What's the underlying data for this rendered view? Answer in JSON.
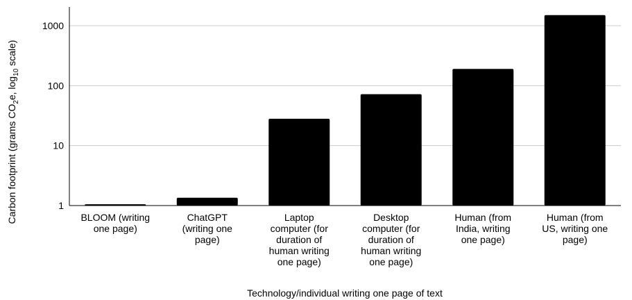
{
  "chart_data": {
    "type": "bar",
    "scale": "log10",
    "categories": [
      [
        "BLOOM (writing",
        "one page)"
      ],
      [
        "ChatGPT",
        "(writing one",
        "page)"
      ],
      [
        "Laptop",
        "computer (for",
        "duration of",
        "human writing",
        "one page)"
      ],
      [
        "Desktop",
        "computer (for",
        "duration of",
        "human writing",
        "one page)"
      ],
      [
        "Human (from",
        "India, writing",
        "one page)"
      ],
      [
        "Human (from",
        "US, writing one",
        "page)"
      ]
    ],
    "values": [
      1.05,
      1.35,
      28,
      72,
      190,
      1500
    ],
    "ylim": [
      1,
      2000
    ],
    "yticks": [
      "1",
      "10",
      "100",
      "1000"
    ],
    "xlabel": "Technology/individual writing one page of text",
    "ylabel_parts": {
      "pre": "Carbon footprint (grams CO",
      "sub1": "2",
      "mid": "e, log",
      "sub2": "10",
      "post": " scale)"
    },
    "grid": true,
    "bar_color": "#000000",
    "grid_color": "#cccccc"
  }
}
